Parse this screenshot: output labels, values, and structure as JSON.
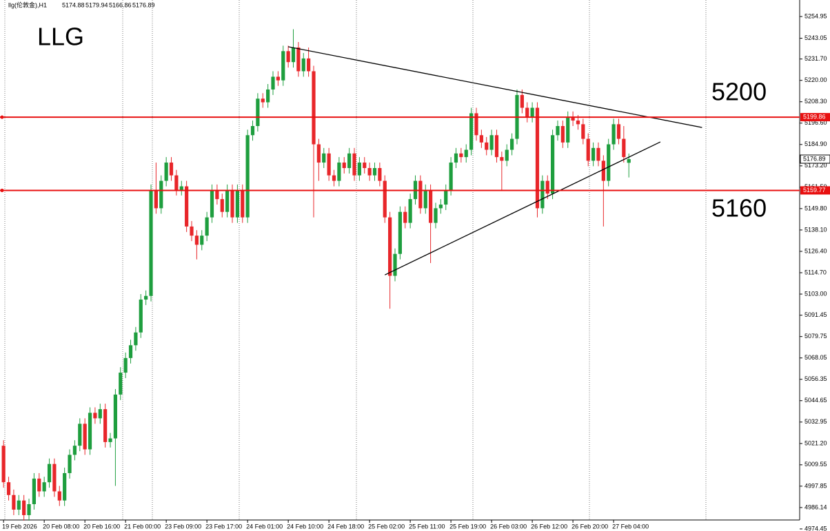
{
  "header": {
    "symbol": "llg(伦敦金),H1",
    "ohlc": [
      5174.88,
      5179.94,
      5166.86,
      5176.89
    ]
  },
  "chart_data": {
    "type": "candlestick",
    "title": "LLG",
    "annotations": [
      "5200",
      "5160"
    ],
    "open": [
      5020,
      5000,
      4993,
      4985,
      4990,
      4982,
      4988,
      5002,
      4995,
      5000,
      5010,
      4995,
      4990,
      5005,
      5015,
      5020,
      5032,
      5018,
      5038,
      5035,
      5040,
      5022,
      5024,
      5048,
      5060,
      5068,
      5075,
      5082,
      5100,
      5102,
      5160,
      5150,
      5165,
      5175,
      5168,
      5160,
      5162,
      5140,
      5135,
      5130,
      5135,
      5145,
      5160,
      5155,
      5148,
      5160,
      5145,
      5160,
      5145,
      5190,
      5195,
      5210,
      5208,
      5215,
      5222,
      5220,
      5236,
      5230,
      5238,
      5225,
      5232,
      5225,
      5185,
      5175,
      5180,
      5168,
      5165,
      5175,
      5172,
      5180,
      5168,
      5175,
      5172,
      5168,
      5172,
      5165,
      5145,
      5113,
      5125,
      5148,
      5142,
      5155,
      5165,
      5150,
      5160,
      5142,
      5150,
      5152,
      5160,
      5175,
      5180,
      5178,
      5182,
      5202,
      5190,
      5186,
      5182,
      5190,
      5178,
      5176,
      5182,
      5188,
      5212,
      5205,
      5200,
      5205,
      5150,
      5165,
      5158,
      5190,
      5195,
      5186,
      5200,
      5198,
      5196,
      5188,
      5176,
      5183,
      5176,
      5165,
      5185,
      5196,
      5188,
      5174.88
    ],
    "high": [
      5023,
      5003,
      4996,
      4993,
      4993,
      4991,
      5005,
      5005,
      5003,
      5013,
      5013,
      4998,
      5008,
      5018,
      5023,
      5035,
      5035,
      5041,
      5041,
      5043,
      5043,
      5027,
      5051,
      5063,
      5071,
      5078,
      5085,
      5103,
      5105,
      5163,
      5175,
      5168,
      5178,
      5178,
      5171,
      5165,
      5165,
      5143,
      5138,
      5138,
      5148,
      5163,
      5163,
      5158,
      5163,
      5163,
      5163,
      5163,
      5193,
      5198,
      5213,
      5213,
      5218,
      5225,
      5225,
      5239,
      5239,
      5248,
      5241,
      5235,
      5238,
      5228,
      5188,
      5183,
      5183,
      5171,
      5178,
      5178,
      5183,
      5183,
      5178,
      5178,
      5175,
      5175,
      5175,
      5168,
      5148,
      5128,
      5151,
      5151,
      5158,
      5168,
      5168,
      5163,
      5163,
      5153,
      5155,
      5163,
      5178,
      5183,
      5183,
      5185,
      5205,
      5205,
      5193,
      5189,
      5193,
      5193,
      5181,
      5185,
      5191,
      5215,
      5215,
      5208,
      5208,
      5208,
      5168,
      5168,
      5193,
      5198,
      5198,
      5203,
      5203,
      5201,
      5199,
      5191,
      5186,
      5186,
      5179,
      5188,
      5199,
      5199,
      5195,
      5179.94
    ],
    "low": [
      4997,
      4990,
      4982,
      4982,
      4979,
      4979,
      4985,
      4992,
      4992,
      4997,
      4992,
      4987,
      4987,
      5002,
      5012,
      5017,
      5015,
      5015,
      5032,
      5032,
      5019,
      5019,
      4998,
      5045,
      5057,
      5065,
      5072,
      5079,
      5097,
      5099,
      5147,
      5147,
      5162,
      5165,
      5157,
      5157,
      5137,
      5132,
      5122,
      5127,
      5132,
      5142,
      5152,
      5145,
      5145,
      5142,
      5142,
      5142,
      5142,
      5187,
      5192,
      5205,
      5205,
      5212,
      5217,
      5217,
      5227,
      5227,
      5222,
      5222,
      5222,
      5145,
      5165,
      5172,
      5165,
      5162,
      5162,
      5169,
      5169,
      5165,
      5165,
      5169,
      5165,
      5165,
      5162,
      5142,
      5095,
      5110,
      5122,
      5139,
      5139,
      5152,
      5147,
      5147,
      5120,
      5139,
      5147,
      5149,
      5157,
      5172,
      5175,
      5175,
      5179,
      5187,
      5183,
      5179,
      5179,
      5175,
      5160,
      5173,
      5179,
      5185,
      5202,
      5197,
      5197,
      5145,
      5147,
      5155,
      5155,
      5187,
      5183,
      5183,
      5195,
      5193,
      5185,
      5173,
      5173,
      5173,
      5140,
      5162,
      5182,
      5185,
      5175,
      5166.86
    ],
    "close": [
      5000,
      4993,
      4985,
      4990,
      4982,
      4988,
      5002,
      4995,
      5000,
      5010,
      4995,
      4990,
      5005,
      5015,
      5020,
      5032,
      5018,
      5038,
      5035,
      5040,
      5022,
      5024,
      5048,
      5060,
      5068,
      5075,
      5082,
      5100,
      5102,
      5160,
      5150,
      5165,
      5175,
      5168,
      5160,
      5162,
      5140,
      5135,
      5130,
      5135,
      5145,
      5160,
      5155,
      5148,
      5160,
      5145,
      5160,
      5145,
      5190,
      5195,
      5210,
      5208,
      5215,
      5222,
      5220,
      5236,
      5230,
      5238,
      5225,
      5232,
      5225,
      5185,
      5175,
      5180,
      5168,
      5165,
      5175,
      5172,
      5180,
      5168,
      5175,
      5172,
      5168,
      5172,
      5165,
      5145,
      5113,
      5125,
      5148,
      5142,
      5155,
      5165,
      5150,
      5160,
      5142,
      5150,
      5152,
      5160,
      5175,
      5180,
      5178,
      5182,
      5202,
      5190,
      5186,
      5182,
      5190,
      5178,
      5176,
      5182,
      5188,
      5212,
      5205,
      5200,
      5205,
      5150,
      5165,
      5158,
      5190,
      5195,
      5186,
      5200,
      5198,
      5196,
      5188,
      5176,
      5183,
      5176,
      5165,
      5185,
      5196,
      5188,
      5178,
      5176.89
    ],
    "up_color": "#1e9e3e",
    "down_color": "#e8262a",
    "xlim": [
      -0.7,
      156.6
    ],
    "xticks": [
      {
        "value": 0,
        "label": "19 Feb 2026"
      },
      {
        "value": 8,
        "label": "20 Feb 08:00"
      },
      {
        "value": 16,
        "label": "20 Feb 16:00"
      },
      {
        "value": 24,
        "label": "21 Feb 00:00"
      },
      {
        "value": 32,
        "label": "23 Feb 09:00"
      },
      {
        "value": 40,
        "label": "23 Feb 17:00"
      },
      {
        "value": 48,
        "label": "24 Feb 01:00"
      },
      {
        "value": 56,
        "label": "24 Feb 10:00"
      },
      {
        "value": 64,
        "label": "24 Feb 18:00"
      },
      {
        "value": 72,
        "label": "25 Feb 02:00"
      },
      {
        "value": 80,
        "label": "25 Feb 11:00"
      },
      {
        "value": 88,
        "label": "25 Feb 19:00"
      },
      {
        "value": 96,
        "label": "26 Feb 03:00"
      },
      {
        "value": 104,
        "label": "26 Feb 12:00"
      },
      {
        "value": 112,
        "label": "26 Feb 20:00"
      },
      {
        "value": 120,
        "label": "27 Feb 04:00"
      }
    ],
    "ylim": [
      4973.3,
      5264.0
    ],
    "yticks": [
      4974.45,
      4986.14,
      4997.85,
      5009.55,
      {
        "value": 5021.2,
        "label": "5021.20"
      },
      5032.95,
      5044.65,
      5056.35,
      5068.05,
      5079.75,
      5091.45,
      {
        "value": 5103,
        "label": "5103.00"
      },
      {
        "value": 5114.7,
        "label": "5114.70"
      },
      {
        "value": 5126.4,
        "label": "5126.40"
      },
      {
        "value": 5138.1,
        "label": "5138.10"
      },
      {
        "value": 5149.8,
        "label": "5149.80"
      },
      {
        "value": 5161.5,
        "label": "5161.50"
      },
      {
        "value": 5173.2,
        "label": "5173.20"
      },
      {
        "value": 5184.9,
        "label": "5184.90"
      },
      {
        "value": 5196.6,
        "label": "5196.60"
      },
      {
        "value": 5208.3,
        "label": "5208.30"
      },
      {
        "value": 5220,
        "label": "5220.00"
      },
      {
        "value": 5231.7,
        "label": "5231.70"
      },
      5243.05,
      5254.95
    ],
    "hlines": [
      {
        "value": 5199.86,
        "color": "#e81010"
      },
      {
        "value": 5159.77,
        "color": "#e81010"
      }
    ],
    "trendlines": [
      {
        "x": [
          56,
          137.4
        ],
        "y": [
          5238.4,
          5194.2
        ],
        "color": "#000000"
      },
      {
        "x": [
          75,
          129.2
        ],
        "y": [
          5113.5,
          5186.3
        ],
        "color": "#000000"
      }
    ]
  }
}
